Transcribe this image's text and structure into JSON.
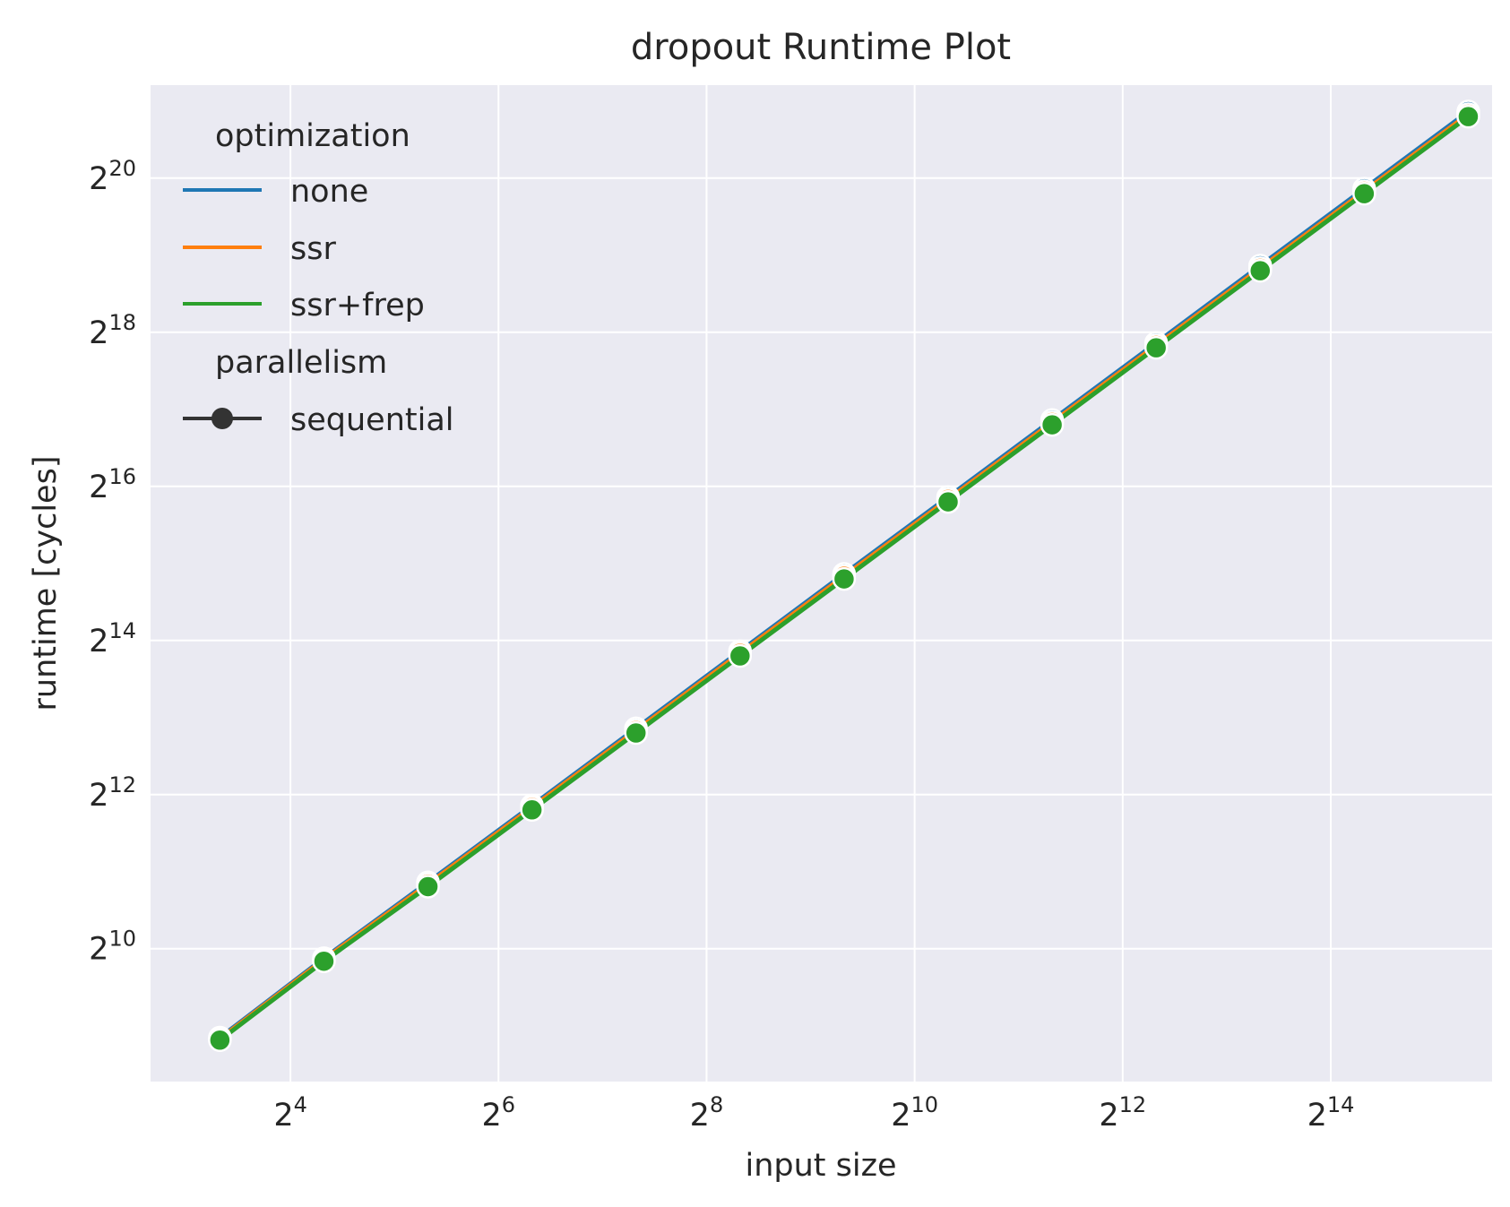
{
  "chart_data": {
    "type": "line",
    "title": "dropout Runtime Plot",
    "xlabel": "input size",
    "ylabel": "runtime [cycles]",
    "x_scale": "log2",
    "y_scale": "log2",
    "x_ticks": [
      {
        "base": "2",
        "exp": "4",
        "value": 16
      },
      {
        "base": "2",
        "exp": "6",
        "value": 64
      },
      {
        "base": "2",
        "exp": "8",
        "value": 256
      },
      {
        "base": "2",
        "exp": "10",
        "value": 1024
      },
      {
        "base": "2",
        "exp": "12",
        "value": 4096
      },
      {
        "base": "2",
        "exp": "14",
        "value": 16384
      }
    ],
    "y_ticks": [
      {
        "base": "2",
        "exp": "10",
        "value": 1024
      },
      {
        "base": "2",
        "exp": "12",
        "value": 4096
      },
      {
        "base": "2",
        "exp": "14",
        "value": 16384
      },
      {
        "base": "2",
        "exp": "16",
        "value": 65536
      },
      {
        "base": "2",
        "exp": "18",
        "value": 262144
      },
      {
        "base": "2",
        "exp": "20",
        "value": 1048576
      }
    ],
    "xlim": [
      6.3,
      48000
    ],
    "ylim": [
      310,
      2420000
    ],
    "x": [
      10,
      20,
      40,
      80,
      160,
      320,
      640,
      1280,
      2560,
      5120,
      10240,
      20480,
      40960
    ],
    "series": [
      {
        "name": "none",
        "color": "#1f77b4",
        "values": [
          460,
          940,
          1860,
          3710,
          7430,
          14880,
          29800,
          59500,
          119000,
          238000,
          477000,
          953000,
          1907000
        ]
      },
      {
        "name": "ssr",
        "color": "#ff7f0e",
        "values": [
          455,
          930,
          1830,
          3650,
          7290,
          14600,
          29200,
          58300,
          116500,
          233000,
          466000,
          931000,
          1863000
        ]
      },
      {
        "name": "ssr+frep",
        "color": "#2ca02c",
        "values": [
          450,
          915,
          1790,
          3570,
          7130,
          14260,
          28500,
          57000,
          114000,
          227900,
          455800,
          911600,
          1823000
        ]
      }
    ],
    "grid": true,
    "legend": {
      "placement": "top-left",
      "title_1": "optimization",
      "title_2": "parallelism",
      "style_entry": "sequential",
      "style_color": "#333333"
    },
    "background": "#eaeaf2"
  }
}
